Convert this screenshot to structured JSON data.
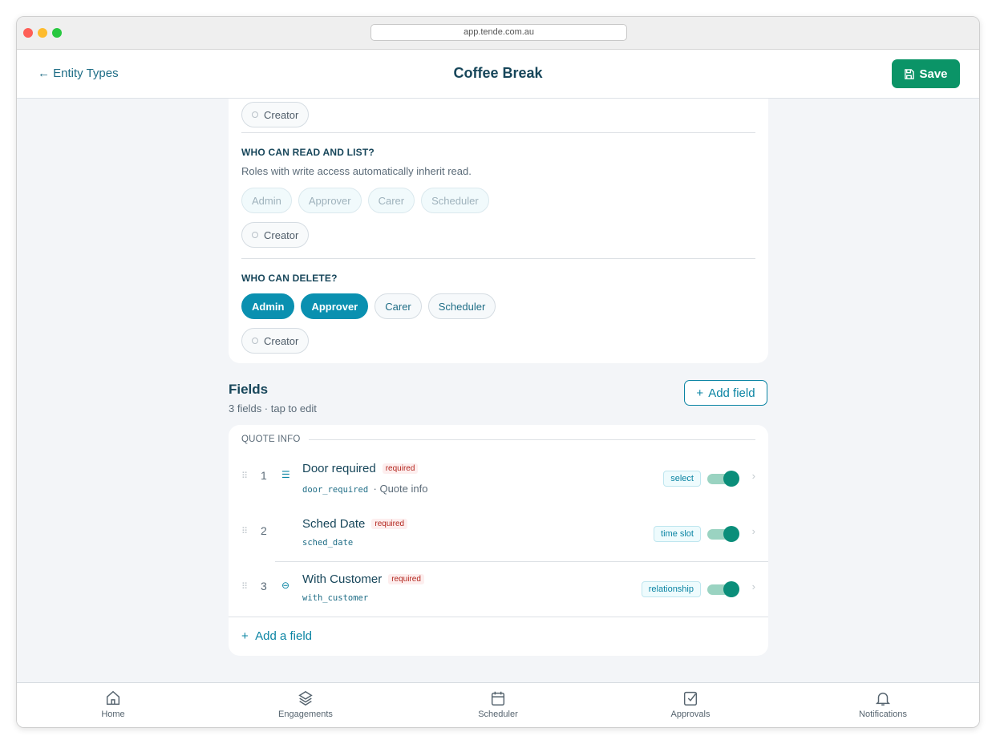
{
  "browser": {
    "url": "app.tende.com.au"
  },
  "header": {
    "back_label": "Entity Types",
    "title": "Coffee Break",
    "save_label": "Save"
  },
  "permissions": {
    "prev_creator": "Creator",
    "read": {
      "title": "WHO CAN READ AND LIST?",
      "subtitle": "Roles with write access automatically inherit read.",
      "roles": [
        "Admin",
        "Approver",
        "Carer",
        "Scheduler"
      ],
      "creator": "Creator"
    },
    "delete": {
      "title": "WHO CAN DELETE?",
      "roles": [
        "Admin",
        "Approver",
        "Carer",
        "Scheduler"
      ],
      "selected": [
        "Admin",
        "Approver"
      ],
      "creator": "Creator"
    }
  },
  "fields": {
    "title": "Fields",
    "subtitle": "3 fields · tap to edit",
    "add_label": "Add field",
    "group": "QUOTE INFO",
    "add_row_label": "Add a field",
    "items": [
      {
        "num": "1",
        "icon": "list-icon",
        "name": "Door required",
        "required": "required",
        "key": "door_required",
        "group": "· Quote info",
        "type": "select",
        "enabled": true
      },
      {
        "num": "2",
        "icon": "",
        "name": "Sched Date",
        "required": "required",
        "key": "sched_date",
        "group": "",
        "type": "time slot",
        "enabled": true
      },
      {
        "num": "3",
        "icon": "link-icon",
        "name": "With Customer",
        "required": "required",
        "key": "with_customer",
        "group": "",
        "type": "relationship",
        "enabled": true
      }
    ]
  },
  "nav": [
    {
      "label": "Home",
      "icon": "home-icon"
    },
    {
      "label": "Engagements",
      "icon": "layers-icon"
    },
    {
      "label": "Scheduler",
      "icon": "calendar-icon"
    },
    {
      "label": "Approvals",
      "icon": "checkbox-icon"
    },
    {
      "label": "Notifications",
      "icon": "bell-icon"
    }
  ],
  "colors": {
    "primary": "#0a90b0",
    "save": "#0b9467",
    "toggle": "#0b8e7a"
  }
}
